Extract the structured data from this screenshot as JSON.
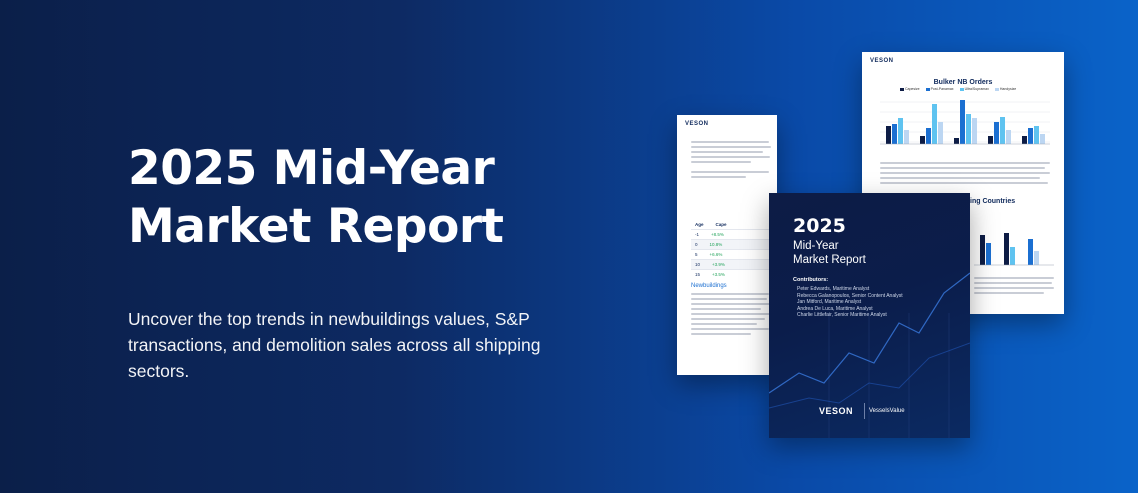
{
  "hero": {
    "title_line1": "2025 Mid-Year",
    "title_line2": "Market Report",
    "subtitle": "Uncover the top trends in newbuildings values, S&P transactions, and demolition sales across all shipping sectors."
  },
  "doc_left": {
    "brand": "VESON",
    "section_heading": "Newbuildings",
    "table_headers": [
      "Age",
      "Cape"
    ],
    "table_rows": [
      [
        "-1",
        "+8.5%"
      ],
      [
        "0",
        "10.8%"
      ],
      [
        "5",
        "+6.6%"
      ],
      [
        "10",
        "+3.9%"
      ],
      [
        "15",
        "+3.5%"
      ]
    ]
  },
  "doc_right": {
    "brand": "VESON",
    "chart_title": "Bulker NB Orders",
    "legend": [
      "Capesize",
      "Post-Panamax",
      "Ultra/Supramax",
      "Handysize"
    ],
    "lower_heading": "ing Countries"
  },
  "cover": {
    "year": "2025",
    "subtitle_line1": "Mid-Year",
    "subtitle_line2": "Market Report",
    "contributors_label": "Contributors:",
    "contributors": [
      "Peter Edwards, Maritime Analyst",
      "Rebecca Galanopoulos, Senior Content Analyst",
      "Jan Mitford, Maritime Analyst",
      "Andrea De Luca, Maritime Analyst",
      "Charlie Littlefair, Senior Maritime Analyst"
    ],
    "logo_left": "VESON",
    "logo_right": "VesselsValue"
  },
  "colors": {
    "accent": "#1b6fd1",
    "bg_dark": "#0b1f49",
    "bg_light": "#0a63c9"
  }
}
